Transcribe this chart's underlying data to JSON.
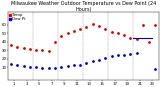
{
  "title": "Milwaukee Weather Outdoor Temperature vs Dew Point (24 Hours)",
  "title_fontsize": 3.5,
  "background_color": "#ffffff",
  "grid_color": "#888888",
  "xlim": [
    0,
    24
  ],
  "ylim": [
    -5,
    75
  ],
  "ytick_vals": [
    10,
    20,
    30,
    40,
    50,
    60
  ],
  "xtick_vals": [
    1,
    3,
    5,
    7,
    9,
    11,
    13,
    15,
    17,
    19,
    21,
    23
  ],
  "temp_color": "#dd0000",
  "dew_color": "#0000cc",
  "temp_x": [
    0.5,
    1.5,
    2.5,
    3.5,
    4.5,
    5.5,
    6.5,
    7.5,
    8.5,
    9.5,
    10.5,
    11.5,
    12.5,
    13.5,
    14.5,
    15.5,
    16.5,
    17.5,
    18.5,
    19.5,
    20.5,
    21.5,
    22.5,
    23.5
  ],
  "temp_y": [
    36,
    34,
    33,
    32,
    31,
    30,
    29,
    40,
    47,
    51,
    53,
    55,
    58,
    61,
    59,
    55,
    52,
    50,
    48,
    45,
    43,
    60,
    40,
    60
  ],
  "dew_x": [
    0.5,
    1.5,
    2.5,
    3.5,
    4.5,
    5.5,
    6.5,
    7.5,
    8.5,
    9.5,
    10.5,
    11.5,
    12.5,
    13.5,
    14.5,
    15.5,
    16.5,
    17.5,
    18.5,
    19.5,
    20.5,
    23.5
  ],
  "dew_y": [
    14,
    13,
    12,
    11,
    10,
    9,
    9,
    9,
    10,
    12,
    13,
    13,
    15,
    17,
    19,
    21,
    23,
    24,
    25,
    26,
    27,
    8
  ],
  "dew_line_x": [
    20,
    23
  ],
  "dew_line_y": [
    45,
    45
  ],
  "vlines": [
    4,
    8,
    12,
    16,
    20
  ],
  "marker_size": 1.0,
  "legend_fontsize": 2.8,
  "tick_fontsize": 2.8
}
